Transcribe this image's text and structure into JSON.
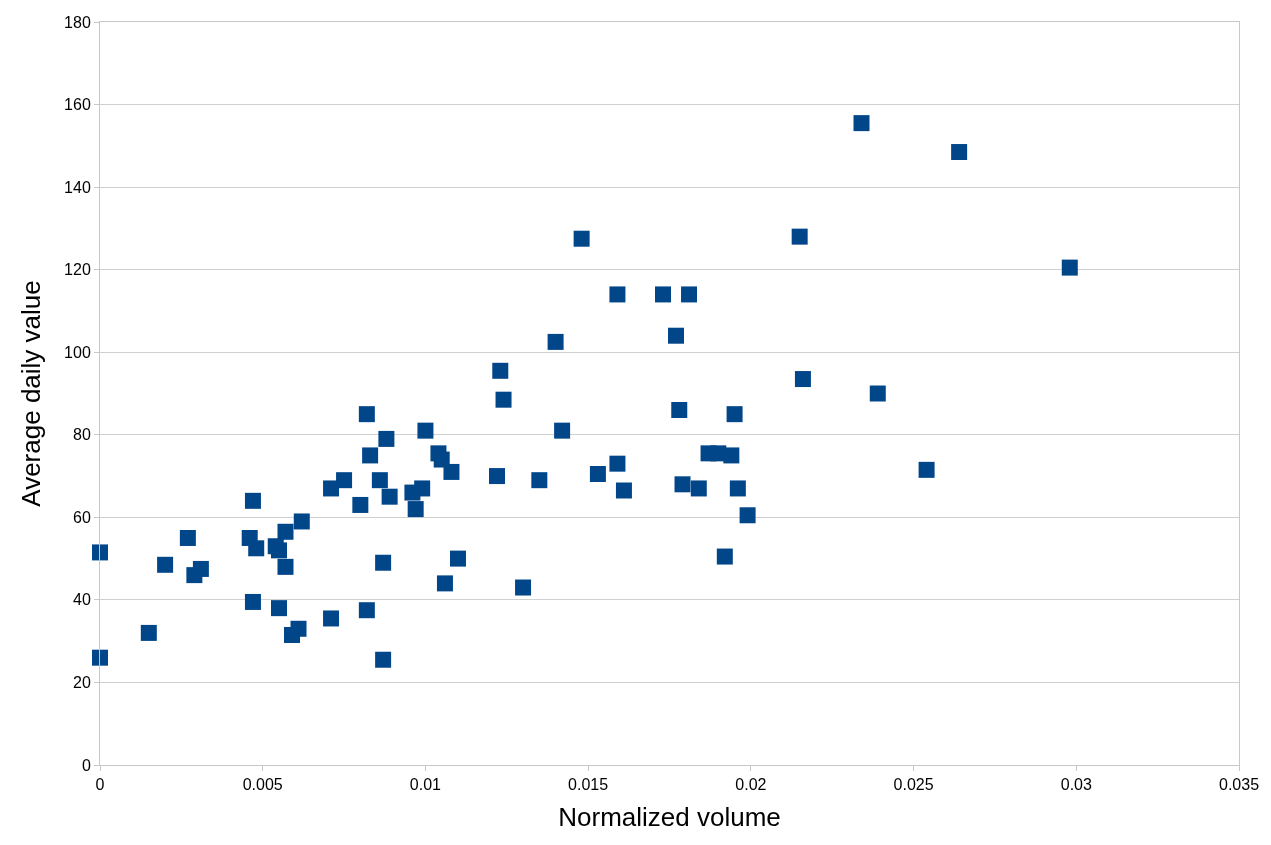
{
  "chart_data": {
    "type": "scatter",
    "xlabel": "Normalized volume",
    "ylabel": "Average daily value",
    "xlim": [
      0,
      0.035
    ],
    "xticks": [
      0,
      0.005,
      0.01,
      0.015,
      0.02,
      0.025,
      0.03,
      0.035
    ],
    "ylim": [
      0,
      180
    ],
    "yticks": [
      0,
      20,
      40,
      60,
      80,
      100,
      120,
      140,
      160,
      180
    ],
    "grid": "y",
    "marker": "square",
    "series": [
      {
        "color": "#02468a",
        "x": [
          0,
          0,
          0.0015,
          0.002,
          0.0027,
          0.0029,
          0.0031,
          0.0046,
          0.0047,
          0.0047,
          0.0048,
          0.0054,
          0.0055,
          0.0055,
          0.0057,
          0.0057,
          0.0059,
          0.0061,
          0.0062,
          0.0071,
          0.0071,
          0.0075,
          0.008,
          0.0082,
          0.0082,
          0.0083,
          0.0086,
          0.0087,
          0.0087,
          0.0088,
          0.0089,
          0.0096,
          0.0097,
          0.0099,
          0.01,
          0.0104,
          0.0105,
          0.0106,
          0.0108,
          0.011,
          0.0122,
          0.0123,
          0.0124,
          0.013,
          0.0135,
          0.014,
          0.0142,
          0.0148,
          0.0153,
          0.0159,
          0.0159,
          0.0161,
          0.0173,
          0.0177,
          0.0178,
          0.0179,
          0.0181,
          0.0184,
          0.0187,
          0.019,
          0.0192,
          0.0194,
          0.0195,
          0.0196,
          0.0199,
          0.0215,
          0.0216,
          0.0234,
          0.0239,
          0.0254,
          0.0264,
          0.0298
        ],
        "values": [
          51.5,
          26,
          32,
          48.5,
          55,
          46,
          47.5,
          55,
          64,
          39.5,
          52.5,
          53,
          52,
          38,
          56.5,
          48,
          31.5,
          33,
          59,
          67,
          35.5,
          69,
          63,
          85,
          37.5,
          75,
          69,
          25.5,
          49,
          79,
          65,
          66,
          62,
          67,
          81,
          75.5,
          74,
          44,
          71,
          50,
          70,
          95.5,
          88.5,
          43,
          69,
          102.5,
          81,
          127.5,
          70.5,
          73,
          114,
          66.5,
          114,
          104,
          86,
          68,
          114,
          67,
          75.5,
          75.5,
          50.5,
          75,
          85,
          67,
          60.5,
          128,
          93.5,
          155.5,
          90,
          71.5,
          148.5,
          120.5
        ]
      }
    ]
  }
}
